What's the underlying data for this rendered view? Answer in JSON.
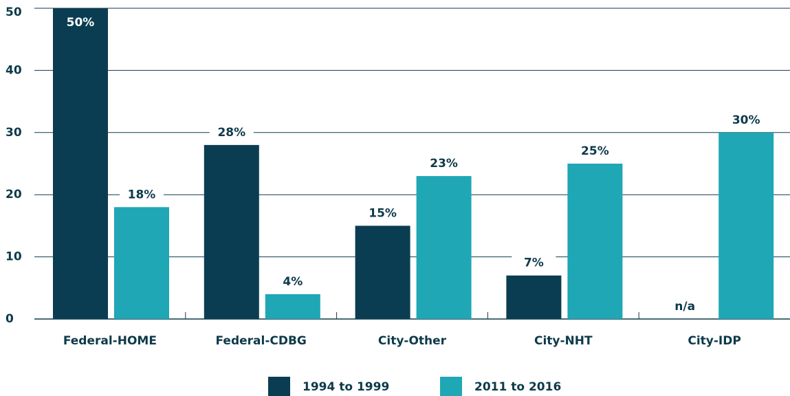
{
  "chart_data": {
    "type": "bar",
    "categories": [
      "Federal-HOME",
      "Federal-CDBG",
      "City-Other",
      "City-NHT",
      "City-IDP"
    ],
    "series": [
      {
        "name": "1994 to 1999",
        "color": "#0a3d52",
        "values": [
          50,
          28,
          15,
          7,
          null
        ],
        "value_labels": [
          "50%",
          "28%",
          "15%",
          "7%",
          "n/a"
        ]
      },
      {
        "name": "2011 to 2016",
        "color": "#1fa7b5",
        "values": [
          18,
          4,
          23,
          25,
          30
        ],
        "value_labels": [
          "18%",
          "4%",
          "23%",
          "25%",
          "30%"
        ]
      }
    ],
    "ylim": [
      0,
      50
    ],
    "yticks": [
      0,
      10,
      20,
      30,
      40,
      50
    ],
    "grid": true,
    "legend": "bottom"
  }
}
